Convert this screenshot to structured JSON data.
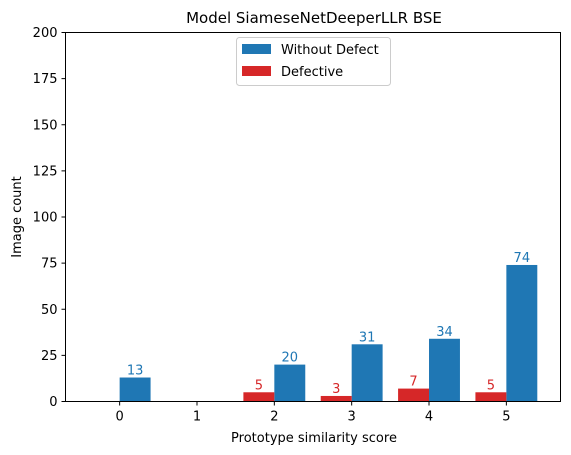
{
  "chart_data": {
    "type": "bar",
    "title": "Model SiameseNetDeeperLLR BSE",
    "xlabel": "Prototype similarity score",
    "ylabel": "Image count",
    "categories": [
      "0",
      "1",
      "2",
      "3",
      "4",
      "5"
    ],
    "x": [
      0,
      1,
      2,
      3,
      4,
      5
    ],
    "ylim": [
      0,
      200
    ],
    "xlim": [
      -0.7,
      5.7
    ],
    "yticks": [
      0,
      25,
      50,
      75,
      100,
      125,
      150,
      175,
      200
    ],
    "bar_width": 0.4,
    "legend_position": "upper center",
    "grid": false,
    "series": [
      {
        "name": "Without Defect",
        "color": "#1f77b4",
        "offset": 0.2,
        "values": [
          13,
          0,
          20,
          31,
          34,
          74
        ],
        "labels": [
          "13",
          "",
          "20",
          "31",
          "34",
          "74"
        ]
      },
      {
        "name": "Defective",
        "color": "#d62728",
        "offset": -0.2,
        "values": [
          0,
          0,
          5,
          3,
          7,
          5
        ],
        "labels": [
          "",
          "",
          "5",
          "3",
          "7",
          "5"
        ]
      }
    ]
  }
}
